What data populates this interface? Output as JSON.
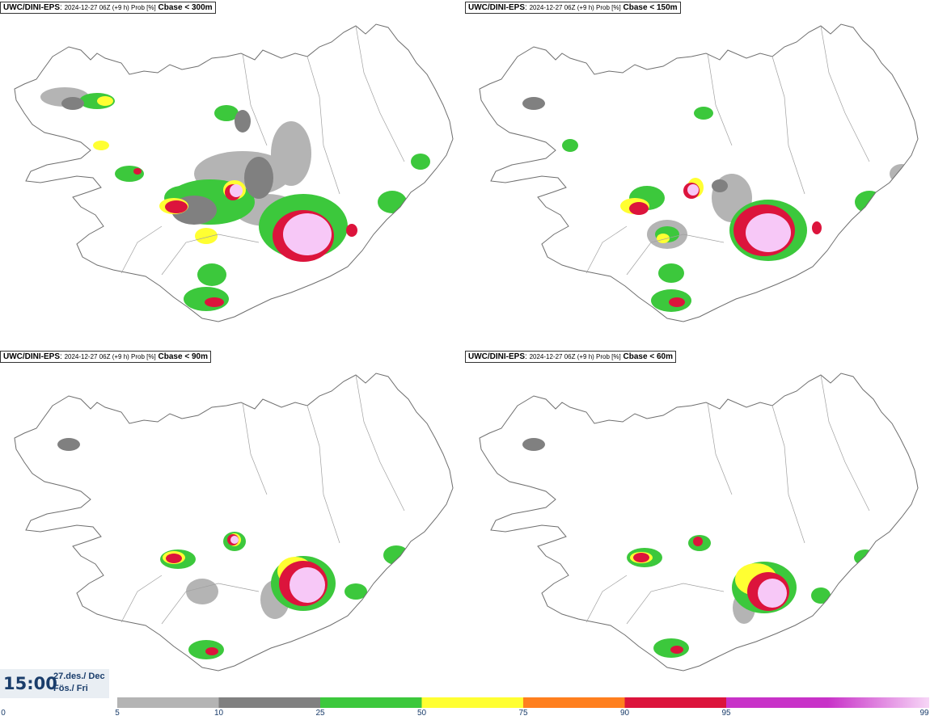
{
  "panels": [
    {
      "model": "UWC/DINI-EPS",
      "meta": "2024-12-27 06Z (+9 h) Prob [%]",
      "threshold": "Cbase < 300m"
    },
    {
      "model": "UWC/DINI-EPS",
      "meta": "2024-12-27 06Z (+9 h) Prob [%]",
      "threshold": "Cbase < 150m"
    },
    {
      "model": "UWC/DINI-EPS",
      "meta": "2024-12-27 06Z (+9 h) Prob [%]",
      "threshold": "Cbase < 90m"
    },
    {
      "model": "UWC/DINI-EPS",
      "meta": "2024-12-27 06Z (+9 h) Prob [%]",
      "threshold": "Cbase < 60m"
    }
  ],
  "valid_time": {
    "time": "15:00",
    "date": "27.des./ Dec",
    "day": "Fös./ Fri"
  },
  "colorbar": {
    "ticks": [
      "0",
      "5",
      "10",
      "25",
      "50",
      "75",
      "90",
      "95",
      "99"
    ],
    "colors": [
      "#b4b4b4",
      "#808080",
      "#3cc83c",
      "#ffff32",
      "#ff7f1e",
      "#dc143c",
      "#c832c8",
      "#f7c8f7"
    ]
  },
  "colors": {
    "land_outline": "#6e6e6e",
    "text": "#1a3d6b"
  }
}
